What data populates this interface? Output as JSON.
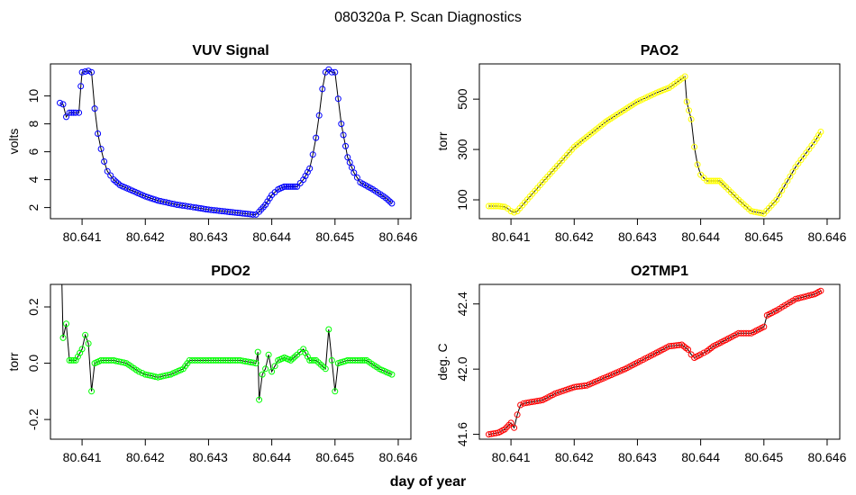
{
  "figure": {
    "title": "080320a   P. Scan Diagnostics",
    "shared_xlabel": "day of year"
  },
  "chart_data": [
    {
      "type": "scatter",
      "id": "vuv",
      "title": "VUV Signal",
      "xlabel": "",
      "ylabel": "volts",
      "color": "#0000ff",
      "line_color": "#000000",
      "xlim": [
        80.6405,
        80.6462
      ],
      "ylim": [
        1.2,
        12.3
      ],
      "xticks": [
        80.641,
        80.642,
        80.643,
        80.644,
        80.645,
        80.646
      ],
      "xtick_labels": [
        "80.641",
        "80.642",
        "80.643",
        "80.644",
        "80.645",
        "80.646"
      ],
      "yticks": [
        2,
        4,
        6,
        8,
        10
      ],
      "ytick_labels": [
        "2",
        "4",
        "6",
        "8",
        "10"
      ],
      "series": [
        {
          "name": "VUV Signal",
          "points": [
            [
              80.64065,
              9.5
            ],
            [
              80.6407,
              9.4
            ],
            [
              80.64075,
              8.5
            ],
            [
              80.6408,
              8.8
            ],
            [
              80.6409,
              8.8
            ],
            [
              80.64095,
              8.8
            ],
            [
              80.64098,
              10.7
            ],
            [
              80.641,
              11.7
            ],
            [
              80.6411,
              11.8
            ],
            [
              80.64115,
              11.7
            ],
            [
              80.6412,
              9.1
            ],
            [
              80.64125,
              7.3
            ],
            [
              80.6413,
              6.2
            ],
            [
              80.64135,
              5.3
            ],
            [
              80.6414,
              4.6
            ],
            [
              80.6415,
              4.0
            ],
            [
              80.6416,
              3.6
            ],
            [
              80.6418,
              3.2
            ],
            [
              80.642,
              2.8
            ],
            [
              80.6422,
              2.5
            ],
            [
              80.6425,
              2.2
            ],
            [
              80.6428,
              2.0
            ],
            [
              80.643,
              1.85
            ],
            [
              80.6433,
              1.7
            ],
            [
              80.6435,
              1.6
            ],
            [
              80.6437,
              1.5
            ],
            [
              80.64375,
              1.5
            ],
            [
              80.6438,
              1.7
            ],
            [
              80.6439,
              2.2
            ],
            [
              80.644,
              2.9
            ],
            [
              80.6441,
              3.3
            ],
            [
              80.6442,
              3.5
            ],
            [
              80.6443,
              3.5
            ],
            [
              80.6444,
              3.5
            ],
            [
              80.6445,
              4.0
            ],
            [
              80.6446,
              4.8
            ],
            [
              80.64465,
              5.8
            ],
            [
              80.6447,
              7.0
            ],
            [
              80.64475,
              8.6
            ],
            [
              80.6448,
              10.5
            ],
            [
              80.64485,
              11.7
            ],
            [
              80.6449,
              11.9
            ],
            [
              80.64495,
              11.7
            ],
            [
              80.645,
              11.7
            ],
            [
              80.64505,
              9.8
            ],
            [
              80.6451,
              8.0
            ],
            [
              80.6452,
              5.6
            ],
            [
              80.6453,
              4.5
            ],
            [
              80.6454,
              3.8
            ],
            [
              80.6456,
              3.3
            ],
            [
              80.6458,
              2.7
            ],
            [
              80.6459,
              2.3
            ]
          ]
        }
      ]
    },
    {
      "type": "scatter",
      "id": "pao2",
      "title": "PAO2",
      "xlabel": "",
      "ylabel": "torr",
      "color": "#ffff00",
      "line_color": "#000000",
      "xlim": [
        80.6405,
        80.6462
      ],
      "ylim": [
        25,
        640
      ],
      "xticks": [
        80.641,
        80.642,
        80.643,
        80.644,
        80.645,
        80.646
      ],
      "xtick_labels": [
        "80.641",
        "80.642",
        "80.643",
        "80.644",
        "80.645",
        "80.646"
      ],
      "yticks": [
        100,
        300,
        500
      ],
      "ytick_labels": [
        "100",
        "300",
        "500"
      ],
      "series": [
        {
          "name": "PAO2",
          "points": [
            [
              80.64065,
              75
            ],
            [
              80.6408,
              75
            ],
            [
              80.6409,
              72
            ],
            [
              80.64095,
              65
            ],
            [
              80.641,
              55
            ],
            [
              80.64105,
              50
            ],
            [
              80.6411,
              55
            ],
            [
              80.6415,
              170
            ],
            [
              80.642,
              310
            ],
            [
              80.6425,
              410
            ],
            [
              80.643,
              490
            ],
            [
              80.6433,
              525
            ],
            [
              80.6435,
              545
            ],
            [
              80.64375,
              590
            ],
            [
              80.64378,
              490
            ],
            [
              80.64385,
              420
            ],
            [
              80.6439,
              310
            ],
            [
              80.64395,
              240
            ],
            [
              80.644,
              200
            ],
            [
              80.6441,
              175
            ],
            [
              80.6442,
              175
            ],
            [
              80.6443,
              175
            ],
            [
              80.6444,
              150
            ],
            [
              80.6446,
              100
            ],
            [
              80.6448,
              55
            ],
            [
              80.645,
              45
            ],
            [
              80.6452,
              100
            ],
            [
              80.6455,
              230
            ],
            [
              80.6458,
              330
            ],
            [
              80.6459,
              370
            ]
          ]
        }
      ]
    },
    {
      "type": "scatter",
      "id": "pdo2",
      "title": "PDO2",
      "xlabel": "day of year",
      "ylabel": "torr",
      "color": "#00ff00",
      "line_color": "#000000",
      "xlim": [
        80.6405,
        80.6462
      ],
      "ylim": [
        -0.27,
        0.28
      ],
      "xticks": [
        80.641,
        80.642,
        80.643,
        80.644,
        80.645,
        80.646
      ],
      "xtick_labels": [
        "80.641",
        "80.642",
        "80.643",
        "80.644",
        "80.645",
        "80.646"
      ],
      "yticks": [
        -0.2,
        0.0,
        0.2
      ],
      "ytick_labels": [
        "-0.2",
        "0.0",
        "0.2"
      ],
      "series": [
        {
          "name": "PDO2",
          "points": [
            [
              80.64068,
              0.3
            ],
            [
              80.6407,
              0.09
            ],
            [
              80.64075,
              0.14
            ],
            [
              80.6408,
              0.01
            ],
            [
              80.6409,
              0.01
            ],
            [
              80.641,
              0.05
            ],
            [
              80.64105,
              0.1
            ],
            [
              80.6411,
              0.07
            ],
            [
              80.64115,
              -0.1
            ],
            [
              80.6412,
              0.0
            ],
            [
              80.6413,
              0.01
            ],
            [
              80.6415,
              0.01
            ],
            [
              80.6417,
              0.0
            ],
            [
              80.6419,
              -0.03
            ],
            [
              80.642,
              -0.04
            ],
            [
              80.6422,
              -0.05
            ],
            [
              80.6424,
              -0.04
            ],
            [
              80.6426,
              -0.02
            ],
            [
              80.6427,
              0.01
            ],
            [
              80.643,
              0.01
            ],
            [
              80.6435,
              0.01
            ],
            [
              80.64375,
              0.0
            ],
            [
              80.64378,
              0.04
            ],
            [
              80.6438,
              -0.13
            ],
            [
              80.64385,
              -0.04
            ],
            [
              80.6439,
              -0.02
            ],
            [
              80.64395,
              0.03
            ],
            [
              80.644,
              -0.03
            ],
            [
              80.6441,
              0.01
            ],
            [
              80.6442,
              0.02
            ],
            [
              80.6443,
              0.01
            ],
            [
              80.6444,
              0.03
            ],
            [
              80.6445,
              0.05
            ],
            [
              80.6446,
              0.01
            ],
            [
              80.6447,
              0.01
            ],
            [
              80.64485,
              -0.02
            ],
            [
              80.6449,
              0.12
            ],
            [
              80.645,
              -0.1
            ],
            [
              80.64505,
              0.0
            ],
            [
              80.6452,
              0.01
            ],
            [
              80.6454,
              0.01
            ],
            [
              80.6455,
              0.01
            ],
            [
              80.6457,
              -0.02
            ],
            [
              80.6459,
              -0.04
            ]
          ]
        }
      ]
    },
    {
      "type": "scatter",
      "id": "o2tmp1",
      "title": "O2TMP1",
      "xlabel": "",
      "ylabel": "deg. C",
      "color": "#ff0000",
      "line_color": "#000000",
      "xlim": [
        80.6405,
        80.6462
      ],
      "ylim": [
        41.57,
        42.52
      ],
      "xticks": [
        80.641,
        80.642,
        80.643,
        80.644,
        80.645,
        80.646
      ],
      "xtick_labels": [
        "80.641",
        "80.642",
        "80.643",
        "80.644",
        "80.645",
        "80.646"
      ],
      "yticks": [
        41.6,
        42.0,
        42.4
      ],
      "ytick_labels": [
        "41.6",
        "42.0",
        "42.4"
      ],
      "series": [
        {
          "name": "O2TMP1",
          "points": [
            [
              80.64065,
              41.6
            ],
            [
              80.6408,
              41.61
            ],
            [
              80.6409,
              41.63
            ],
            [
              80.641,
              41.67
            ],
            [
              80.64105,
              41.64
            ],
            [
              80.6411,
              41.72
            ],
            [
              80.64115,
              41.78
            ],
            [
              80.6412,
              41.79
            ],
            [
              80.6415,
              41.81
            ],
            [
              80.6417,
              41.85
            ],
            [
              80.642,
              41.89
            ],
            [
              80.6422,
              41.9
            ],
            [
              80.6425,
              41.95
            ],
            [
              80.6428,
              42.0
            ],
            [
              80.643,
              42.04
            ],
            [
              80.6433,
              42.1
            ],
            [
              80.6435,
              42.14
            ],
            [
              80.6437,
              42.15
            ],
            [
              80.6438,
              42.12
            ],
            [
              80.64385,
              42.09
            ],
            [
              80.6439,
              42.07
            ],
            [
              80.644,
              42.09
            ],
            [
              80.6441,
              42.11
            ],
            [
              80.6442,
              42.14
            ],
            [
              80.6444,
              42.18
            ],
            [
              80.6446,
              42.22
            ],
            [
              80.6448,
              42.22
            ],
            [
              80.645,
              42.26
            ],
            [
              80.64505,
              42.33
            ],
            [
              80.6452,
              42.36
            ],
            [
              80.6455,
              42.43
            ],
            [
              80.6458,
              42.46
            ],
            [
              80.6459,
              42.48
            ]
          ]
        }
      ]
    }
  ]
}
